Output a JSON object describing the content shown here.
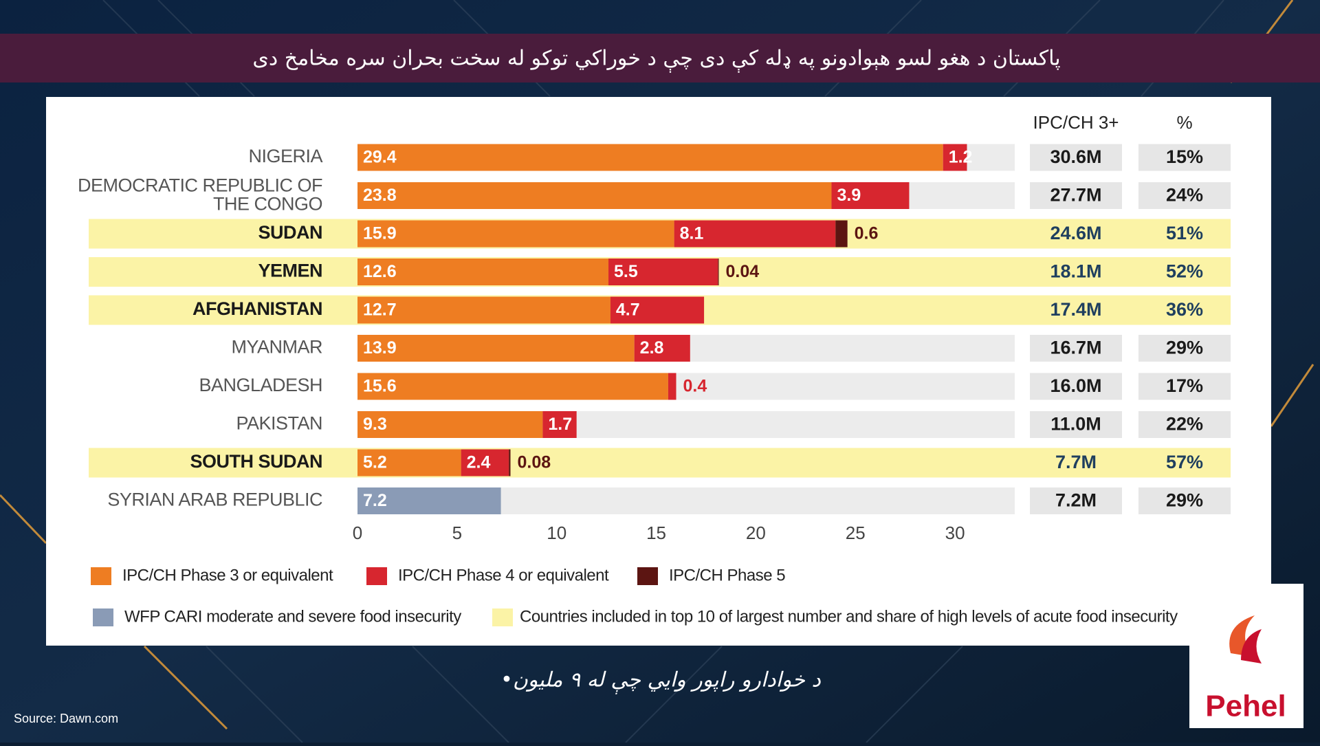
{
  "banner_title": "پاکستان د هغو لسو هېوادونو په ډله کې دی چې د خوراکي توکو له سخت بحران سره مخامخ دی",
  "caption": "د خوادارو راپور وايي چې له ۹ مليون•",
  "source": "Source: Dawn.com",
  "logo": "Pehel",
  "chart_data": {
    "type": "stacked_bar",
    "orientation": "horizontal",
    "categories": [
      "NIGERIA",
      "DEMOCRATIC REPUBLIC OF THE CONGO",
      "SUDAN",
      "YEMEN",
      "AFGHANISTAN",
      "MYANMAR",
      "BANGLADESH",
      "PAKISTAN",
      "SOUTH SUDAN",
      "SYRIAN ARAB REPUBLIC"
    ],
    "series": [
      {
        "name": "IPC/CH Phase 3 or equivalent",
        "color": "#ee7d22",
        "values": [
          29.4,
          23.8,
          15.9,
          12.6,
          12.7,
          13.9,
          15.6,
          9.3,
          5.2,
          null
        ]
      },
      {
        "name": "IPC/CH Phase 4 or equivalent",
        "color": "#d7262f",
        "values": [
          1.2,
          3.9,
          8.1,
          5.5,
          4.7,
          2.8,
          0.4,
          1.7,
          2.4,
          null
        ]
      },
      {
        "name": "IPC/CH Phase 5",
        "color": "#5c1512",
        "values": [
          null,
          null,
          0.6,
          0.04,
          null,
          null,
          null,
          null,
          0.08,
          null
        ]
      },
      {
        "name": "WFP CARI moderate and severe food insecurity",
        "color": "#8a9bb6",
        "values": [
          null,
          null,
          null,
          null,
          null,
          null,
          null,
          null,
          null,
          7.2
        ]
      }
    ],
    "highlight": [
      false,
      false,
      true,
      true,
      true,
      false,
      false,
      false,
      true,
      false
    ],
    "highlight_color": "#fbf3a6",
    "highlight_label": "Countries included in top 10 of largest number and share of high levels of acute food insecurity",
    "xlim": [
      0,
      33
    ],
    "xticks": [
      0,
      5,
      10,
      15,
      20,
      25,
      30
    ],
    "table": {
      "columns": [
        {
          "header": "IPC/CH 3+",
          "values": [
            "30.6M",
            "27.7M",
            "24.6M",
            "18.1M",
            "17.4M",
            "16.7M",
            "16.0M",
            "11.0M",
            "7.7M",
            "7.2M"
          ]
        },
        {
          "header": "%",
          "values": [
            "15%",
            "24%",
            "51%",
            "52%",
            "36%",
            "29%",
            "17%",
            "22%",
            "57%",
            "29%"
          ]
        }
      ]
    }
  }
}
